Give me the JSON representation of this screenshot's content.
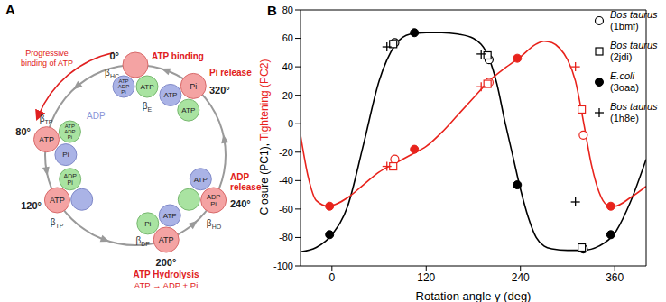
{
  "diagram": {
    "panel_label": "A",
    "arc_label": "Progressive binding of ATP",
    "states": [
      {
        "angle": "0°",
        "event": "ATP binding",
        "subunits": [
          "βHC",
          "βE"
        ],
        "green": "ATP",
        "blue": "ATP ADP Pi"
      },
      {
        "angle": "80°",
        "subunits": [
          "βTP"
        ],
        "red": "ATP",
        "blue": "Pi",
        "green": "ATP ADP Pi",
        "released": "ADP"
      },
      {
        "angle": "120°",
        "subunits": [
          "βTP"
        ],
        "red": "ATP",
        "green": "ADP Pi"
      },
      {
        "angle": "200°",
        "event": "ATP Hydrolysis",
        "event_detail": "ATP → ADP + Pi",
        "subunits": [
          "βDP"
        ],
        "red": "ATP",
        "blue": "ATP",
        "green": "Pi"
      },
      {
        "angle": "240°",
        "event": "ADP release",
        "subunits": [
          "βHO"
        ],
        "red": "ADP Pi",
        "blue": "ATP"
      },
      {
        "angle": "320°",
        "event": "Pi release",
        "red": "Pi",
        "blue": "ATP",
        "green": "ATP"
      }
    ]
  },
  "chart_data": {
    "type": "line",
    "panel_label": "B",
    "x_label": "Rotation angle γ (deg)",
    "y_label": "Closure (PC1), Tightening (PC2)",
    "xlim": [
      -40,
      400
    ],
    "xticks": [
      0,
      120,
      240,
      360
    ],
    "ylim": [
      -100,
      80
    ],
    "yticks": [
      -100,
      -80,
      -60,
      -40,
      -20,
      0,
      20,
      40,
      60,
      80
    ],
    "grid": false,
    "legend": "upper right",
    "closure": {
      "color": "#000000",
      "x": [
        -40,
        -20,
        0,
        20,
        40,
        60,
        80,
        100,
        120,
        140,
        160,
        180,
        200,
        210,
        220,
        230,
        240,
        250,
        260,
        270,
        280,
        300,
        320,
        340,
        360,
        380,
        400
      ],
      "values": [
        -90,
        -87,
        -78,
        -58,
        -15,
        30,
        55,
        63,
        64,
        64,
        63,
        60,
        46,
        28,
        2,
        -22,
        -46,
        -66,
        -80,
        -86,
        -88,
        -89,
        -89,
        -86,
        -77,
        -55,
        -25
      ]
    },
    "tightening": {
      "color": "#e8231c",
      "x": [
        -40,
        -30,
        -20,
        -5,
        20,
        40,
        60,
        80,
        100,
        120,
        140,
        160,
        180,
        200,
        220,
        240,
        260,
        270,
        280,
        290,
        300,
        310,
        320,
        330,
        340,
        350,
        360,
        380,
        400
      ],
      "values": [
        -8,
        -38,
        -54,
        -58,
        -52,
        -43,
        -34,
        -28,
        -22,
        -16,
        -6,
        6,
        18,
        30,
        39,
        47,
        56,
        58,
        57,
        53,
        45,
        30,
        2,
        -28,
        -48,
        -57,
        -58,
        -52,
        -44
      ]
    },
    "series": [
      {
        "name": "Bos taurus (1bmf)",
        "marker": "circle_open",
        "x": [
          80,
          200,
          320
        ],
        "closure": [
          57,
          45,
          -88
        ],
        "tightening": [
          -25,
          29,
          -8
        ]
      },
      {
        "name": "Bos taurus (2jdi)",
        "marker": "square_open",
        "x": [
          78,
          198,
          318
        ],
        "closure": [
          56,
          48,
          -87
        ],
        "tightening": [
          -30,
          28,
          10
        ]
      },
      {
        "name": "E.coli (3oaa)",
        "marker": "circle_filled",
        "x": [
          -3,
          105,
          236,
          355
        ],
        "closure": [
          -78,
          64,
          -43,
          -78
        ],
        "tightening": [
          -58,
          -18,
          46,
          -58
        ]
      },
      {
        "name": "Bos taurus (1h8e)",
        "marker": "plus",
        "x": [
          70,
          190,
          310
        ],
        "closure": [
          54,
          49,
          -55
        ],
        "tightening": [
          -30,
          26,
          40
        ]
      }
    ]
  }
}
